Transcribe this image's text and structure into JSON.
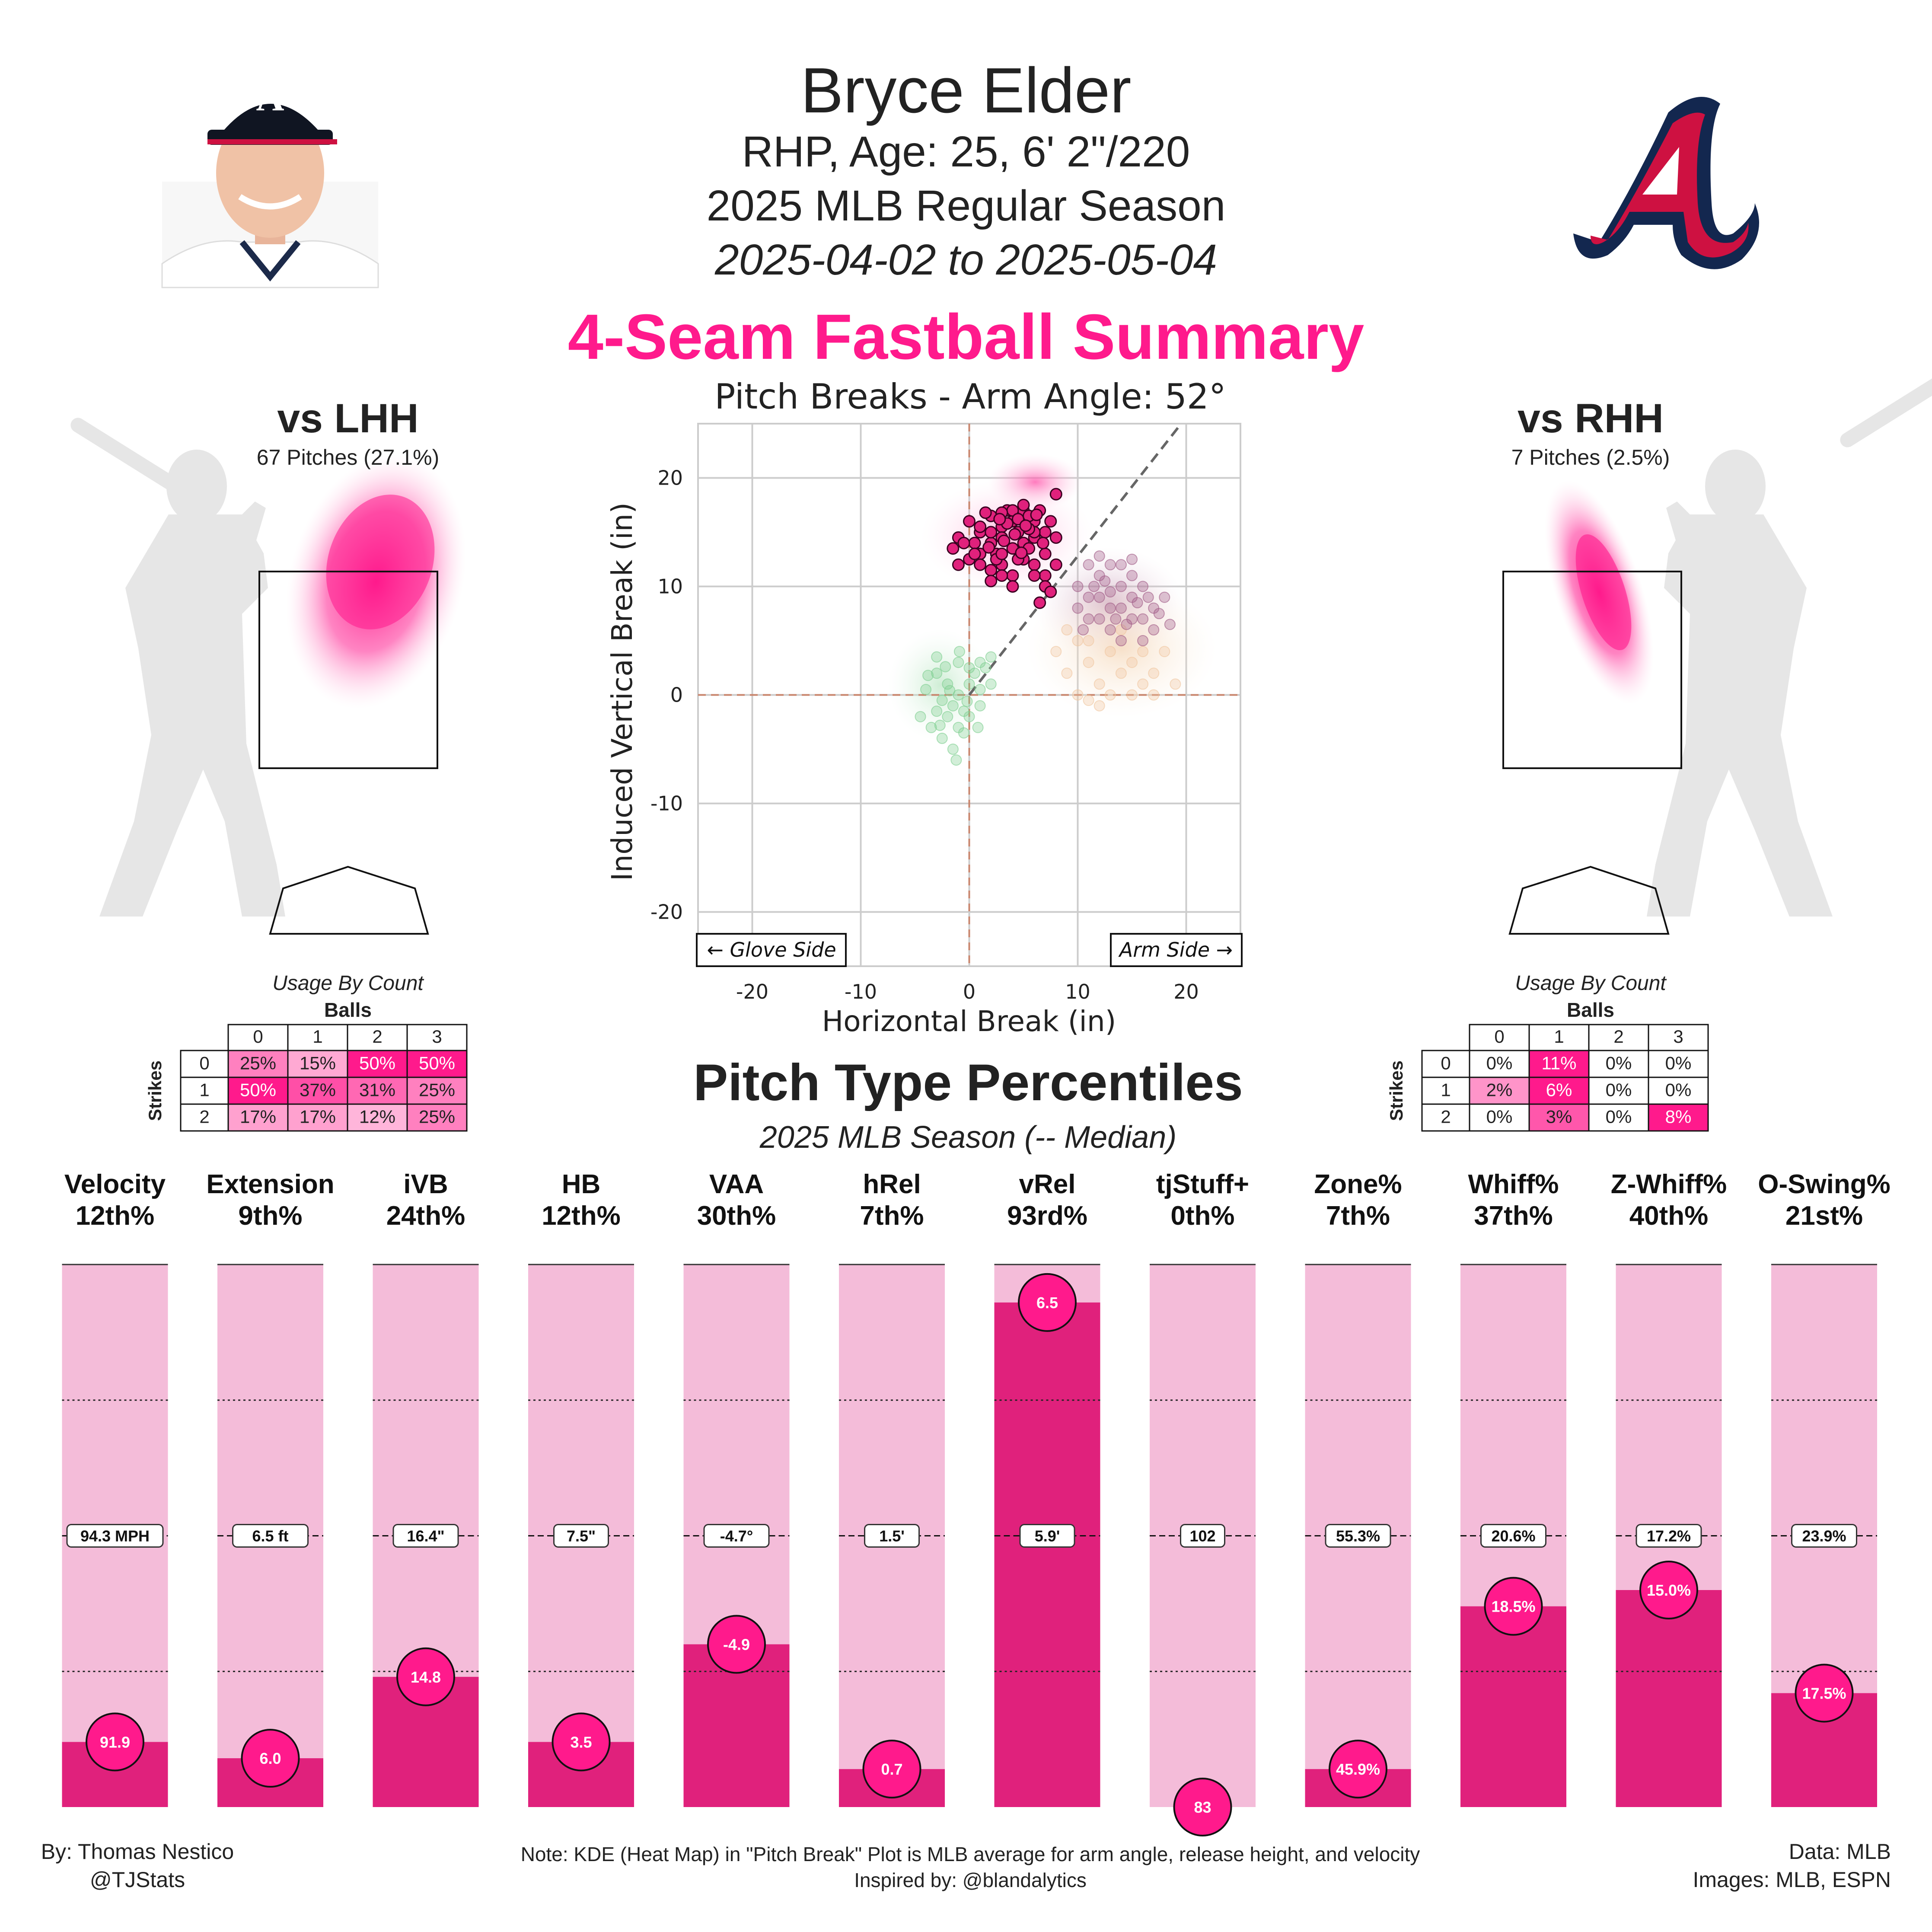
{
  "header": {
    "player_name": "Bryce Elder",
    "bio": "RHP, Age: 25, 6' 2\"/220",
    "season": "2025 MLB Regular Season",
    "date_range": "2025-04-02 to 2025-05-04",
    "summary_title": "4-Seam Fastball Summary"
  },
  "colors": {
    "accent": "#ff1a8c",
    "bar_fill": "#e0217c",
    "bar_bg": "#f4bcd9",
    "sweeper_ch": "#c8a0b4",
    "sinker": "#7dcf8f",
    "orange": "#f5d7b5"
  },
  "split_lhh": {
    "title": "vs LHH",
    "pitches": "67 Pitches (27.1%)",
    "usage_title": "Usage By Count",
    "balls_label": "Balls",
    "strikes_label": "Strikes",
    "balls": [
      "0",
      "1",
      "2",
      "3"
    ],
    "strikes": [
      "0",
      "1",
      "2"
    ],
    "cells": [
      [
        "25%",
        "15%",
        "50%",
        "50%"
      ],
      [
        "50%",
        "37%",
        "31%",
        "25%"
      ],
      [
        "17%",
        "17%",
        "12%",
        "25%"
      ]
    ],
    "shade": [
      [
        0.5,
        0.3,
        1,
        1
      ],
      [
        1,
        0.74,
        0.62,
        0.5
      ],
      [
        0.34,
        0.34,
        0.24,
        0.5
      ]
    ]
  },
  "split_rhh": {
    "title": "vs RHH",
    "pitches": "7 Pitches (2.5%)",
    "usage_title": "Usage By Count",
    "balls_label": "Balls",
    "strikes_label": "Strikes",
    "balls": [
      "0",
      "1",
      "2",
      "3"
    ],
    "strikes": [
      "0",
      "1",
      "2"
    ],
    "cells": [
      [
        "0%",
        "11%",
        "0%",
        "0%"
      ],
      [
        "2%",
        "6%",
        "0%",
        "0%"
      ],
      [
        "0%",
        "3%",
        "0%",
        "8%"
      ]
    ],
    "shade": [
      [
        0,
        1,
        0,
        0
      ],
      [
        0.4,
        1,
        0,
        0
      ],
      [
        0,
        0.7,
        0,
        1
      ]
    ]
  },
  "chart_data": [
    {
      "type": "scatter",
      "title": "Pitch Breaks - Arm Angle: 52°",
      "xlabel": "Horizontal Break (in)",
      "ylabel": "Induced Vertical Break (in)",
      "xlim": [
        -25,
        25
      ],
      "ylim": [
        -25,
        25
      ],
      "xticks": [
        -20,
        -10,
        0,
        10,
        20
      ],
      "yticks": [
        20,
        10,
        0,
        -10,
        -20
      ],
      "grid": true,
      "glove_side_label": "← Glove Side",
      "arm_side_label": "Arm Side →",
      "arm_angle_deg": 52,
      "series": [
        {
          "color": "#e0217c",
          "points": [
            [
              -1,
              14.5
            ],
            [
              0,
              16
            ],
            [
              1,
              15
            ],
            [
              2,
              16.5
            ],
            [
              3,
              15.5
            ],
            [
              4,
              16
            ],
            [
              5,
              17
            ],
            [
              6,
              16
            ],
            [
              7,
              15
            ],
            [
              1,
              13
            ],
            [
              2,
              14
            ],
            [
              3,
              14.5
            ],
            [
              4,
              13.5
            ],
            [
              5,
              14
            ],
            [
              6,
              14.5
            ],
            [
              7,
              13
            ],
            [
              8,
              14.5
            ],
            [
              0,
              12.5
            ],
            [
              1,
              12
            ],
            [
              2,
              11.5
            ],
            [
              3,
              12
            ],
            [
              4,
              11
            ],
            [
              5,
              12.5
            ],
            [
              6,
              12
            ],
            [
              7,
              11
            ],
            [
              8,
              12
            ],
            [
              -1,
              12
            ],
            [
              -1.5,
              13.5
            ],
            [
              0.5,
              14
            ],
            [
              1.5,
              16.8
            ],
            [
              2.5,
              13
            ],
            [
              3.5,
              17
            ],
            [
              4.5,
              15
            ],
            [
              5.5,
              16.5
            ],
            [
              6.5,
              17
            ],
            [
              7.5,
              16
            ],
            [
              2,
              10.5
            ],
            [
              3,
              11
            ],
            [
              4,
              10
            ],
            [
              6,
              11
            ],
            [
              7,
              10
            ],
            [
              6.5,
              8.5
            ],
            [
              7.5,
              9.5
            ],
            [
              8,
              18.5
            ],
            [
              5,
              17.5
            ],
            [
              4,
              17
            ],
            [
              3,
              16.8
            ],
            [
              2.5,
              12.5
            ],
            [
              1,
              15.5
            ],
            [
              0.5,
              13
            ],
            [
              -0.5,
              14
            ],
            [
              3,
              13
            ],
            [
              4.5,
              12.5
            ],
            [
              5.5,
              13.5
            ],
            [
              6,
              15
            ],
            [
              2,
              15
            ],
            [
              3.5,
              15.8
            ],
            [
              4.5,
              16.2
            ],
            [
              5.5,
              15.3
            ],
            [
              6.8,
              14
            ],
            [
              1.8,
              13.6
            ],
            [
              3.2,
              14.2
            ],
            [
              4.2,
              14.8
            ],
            [
              5.2,
              15.6
            ],
            [
              6.2,
              16.6
            ],
            [
              2.8,
              16.2
            ],
            [
              4.8,
              13.1
            ]
          ]
        },
        {
          "color": "#7dcf8f",
          "points": [
            [
              -3,
              2
            ],
            [
              -2,
              1
            ],
            [
              -1,
              0
            ],
            [
              0,
              1
            ],
            [
              1,
              0.5
            ],
            [
              -2.5,
              -0.5
            ],
            [
              -1.5,
              -1
            ],
            [
              -0.5,
              -1.5
            ],
            [
              0.5,
              2
            ],
            [
              -3,
              -1.5
            ],
            [
              -4,
              0.5
            ],
            [
              -1,
              3
            ],
            [
              0,
              2.5
            ],
            [
              1,
              3
            ],
            [
              -2,
              -2
            ],
            [
              -1,
              -3
            ],
            [
              0,
              -2
            ],
            [
              -3.5,
              -3
            ],
            [
              -2.5,
              -4
            ],
            [
              -1.5,
              -5
            ],
            [
              -0.5,
              -3.5
            ],
            [
              1,
              -1
            ],
            [
              2,
              1
            ],
            [
              1.5,
              2.5
            ],
            [
              -0.2,
              -0.6
            ],
            [
              -2.2,
              2.6
            ],
            [
              -4.5,
              -2
            ],
            [
              -3,
              3.5
            ],
            [
              0.8,
              -3
            ],
            [
              -1.8,
              0.4
            ],
            [
              -3.8,
              1.8
            ],
            [
              -0.9,
              4
            ],
            [
              -2.7,
              -2.8
            ],
            [
              2,
              3.5
            ],
            [
              -1.2,
              -6
            ]
          ]
        },
        {
          "color": "#a05a86",
          "points": [
            [
              10,
              10
            ],
            [
              11,
              9
            ],
            [
              12,
              11
            ],
            [
              13,
              8
            ],
            [
              14,
              10
            ],
            [
              15,
              9
            ],
            [
              16,
              7
            ],
            [
              17,
              8
            ],
            [
              12,
              7
            ],
            [
              13,
              6
            ],
            [
              14,
              5
            ],
            [
              15,
              11
            ],
            [
              16,
              10
            ],
            [
              11,
              12
            ],
            [
              13,
              12
            ],
            [
              15,
              7
            ],
            [
              14,
              8
            ],
            [
              12,
              9
            ],
            [
              16,
              5
            ],
            [
              17,
              6
            ],
            [
              18,
              9
            ],
            [
              11,
              7
            ],
            [
              10,
              8
            ],
            [
              14,
              12
            ],
            [
              13,
              9.5
            ],
            [
              15.5,
              8.5
            ],
            [
              12.5,
              10.5
            ],
            [
              16.5,
              9
            ],
            [
              14.5,
              6.5
            ],
            [
              11.5,
              10
            ],
            [
              17.5,
              7.5
            ],
            [
              13.5,
              7
            ],
            [
              15,
              12.5
            ],
            [
              12,
              12.8
            ],
            [
              18.5,
              6.5
            ],
            [
              10.5,
              6
            ]
          ]
        },
        {
          "color": "#f0c7a0",
          "points": [
            [
              8,
              4
            ],
            [
              9,
              2
            ],
            [
              10,
              5
            ],
            [
              11,
              3
            ],
            [
              12,
              1
            ],
            [
              13,
              4
            ],
            [
              14,
              2
            ],
            [
              15,
              3
            ],
            [
              16,
              1
            ],
            [
              9,
              6
            ],
            [
              11,
              5
            ],
            [
              13,
              0
            ],
            [
              15,
              0
            ],
            [
              17,
              2
            ],
            [
              18,
              4
            ],
            [
              10,
              0
            ],
            [
              12,
              -1
            ],
            [
              14,
              6
            ],
            [
              16,
              4
            ],
            [
              19,
              1
            ],
            [
              11,
              -0.5
            ],
            [
              17,
              0
            ]
          ]
        }
      ]
    },
    {
      "type": "bar",
      "title": "Pitch Type Percentiles",
      "subtitle": "2025 MLB Season (-- Median)",
      "categories": [
        "Velocity",
        "Extension",
        "iVB",
        "HB",
        "VAA",
        "hRel",
        "vRel",
        "tjStuff+",
        "Zone%",
        "Whiff%",
        "Z-Whiff%",
        "O-Swing%"
      ],
      "percentile_labels": [
        "12th%",
        "9th%",
        "24th%",
        "12th%",
        "30th%",
        "7th%",
        "93rd%",
        "0th%",
        "7th%",
        "37th%",
        "40th%",
        "21st%"
      ],
      "values": [
        12,
        9,
        24,
        12,
        30,
        7,
        93,
        0,
        7,
        37,
        40,
        21
      ],
      "value_labels": [
        "91.9",
        "6.0",
        "14.8",
        "3.5",
        "-4.9",
        "0.7",
        "6.5",
        "83",
        "45.9%",
        "18.5%",
        "15.0%",
        "17.5%"
      ],
      "median_labels": [
        "94.3 MPH",
        "6.5 ft",
        "16.4\"",
        "7.5\"",
        "-4.7°",
        "1.5'",
        "5.9'",
        "102",
        "55.3%",
        "20.6%",
        "17.2%",
        "23.9%"
      ],
      "ylim": [
        0,
        100
      ]
    }
  ],
  "footer": {
    "by": "By: Thomas Nestico",
    "handle": "@TJStats",
    "note": "Note: KDE (Heat Map) in \"Pitch Break\" Plot is MLB average for arm angle, release height, and velocity",
    "inspired": "Inspired by: @blandalytics",
    "data_src": "Data: MLB",
    "images_src": "Images: MLB, ESPN"
  }
}
